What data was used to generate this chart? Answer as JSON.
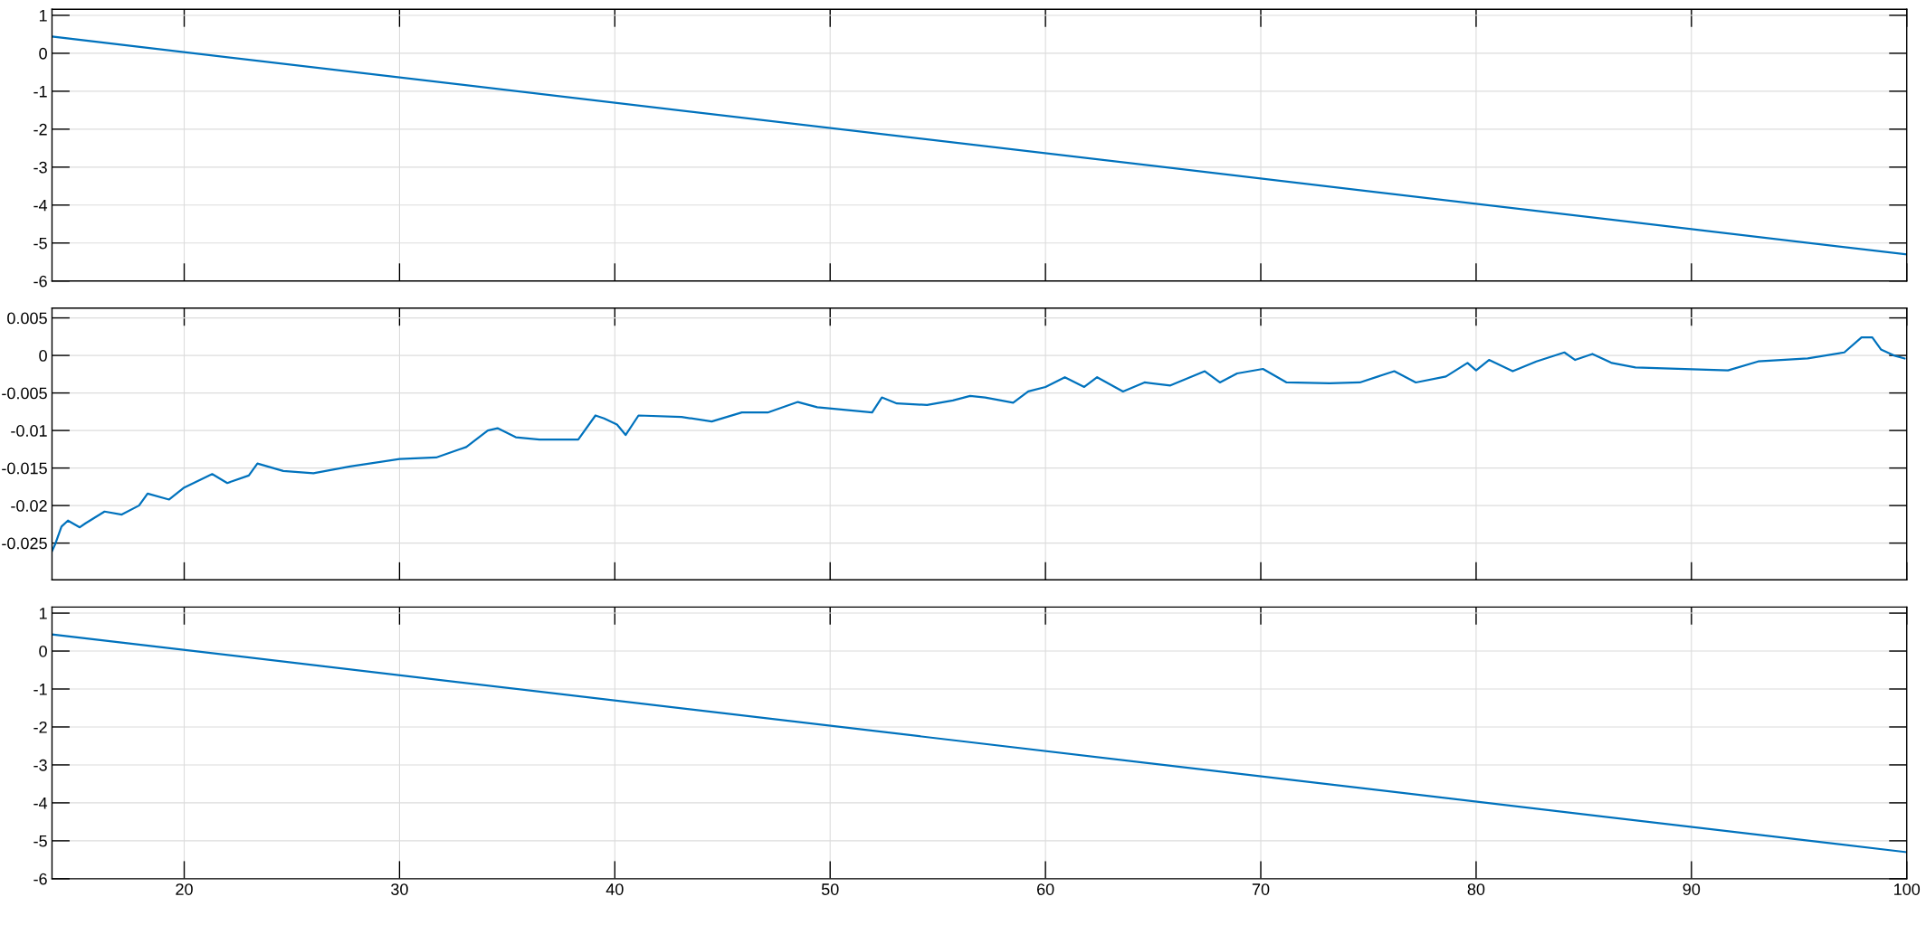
{
  "chart_data": [
    {
      "type": "line",
      "x": [
        13.86,
        100
      ],
      "values": [
        0.44,
        -5.3
      ],
      "color": "#0072bd",
      "xlim": [
        13.86,
        100
      ],
      "xticks": [
        20,
        30,
        40,
        50,
        60,
        70,
        80,
        90,
        100
      ],
      "ylim": [
        -6,
        1.16
      ],
      "yticks": [
        -6,
        -5,
        -4,
        -3,
        -2,
        -1,
        0,
        1
      ],
      "grid": true,
      "tick_labels": "y"
    },
    {
      "type": "line",
      "x": [
        13.87,
        14.0,
        14.3,
        14.6,
        15.15,
        15.4,
        16.3,
        17.1,
        17.9,
        18.3,
        19.3,
        20.0,
        21.3,
        22.0,
        23.0,
        23.4,
        24.6,
        26.0,
        27.7,
        30.0,
        31.7,
        33.1,
        34.1,
        34.55,
        35.4,
        36.5,
        38.3,
        39.1,
        39.5,
        40.1,
        40.5,
        41.1,
        43.1,
        44.5,
        45.9,
        47.1,
        48.5,
        49.4,
        51.95,
        52.4,
        53.1,
        54.5,
        55.7,
        56.5,
        57.2,
        58.5,
        59.2,
        60,
        60.9,
        61.8,
        62.4,
        63.6,
        64.6,
        65.8,
        67.4,
        68.1,
        68.9,
        70.1,
        71.2,
        73.2,
        74.6,
        76.2,
        77.2,
        78.6,
        79.6,
        80.0,
        80.6,
        81.7,
        82.8,
        84.1,
        84.6,
        85.4,
        86.3,
        87.4,
        89.7,
        91.7,
        93.1,
        95.4,
        97.1,
        97.9,
        98.4,
        98.8,
        99.4,
        99.9
      ],
      "values": [
        -0.026,
        -0.0252,
        -0.0228,
        -0.022,
        -0.0229,
        -0.0224,
        -0.0208,
        -0.0212,
        -0.02,
        -0.0184,
        -0.0192,
        -0.0176,
        -0.0158,
        -0.017,
        -0.016,
        -0.0144,
        -0.0154,
        -0.0157,
        -0.0148,
        -0.0138,
        -0.0136,
        -0.0122,
        -0.01,
        -0.0097,
        -0.0109,
        -0.0112,
        -0.0112,
        -0.008,
        -0.0084,
        -0.0092,
        -0.0106,
        -0.008,
        -0.0082,
        -0.0088,
        -0.0076,
        -0.0076,
        -0.0062,
        -0.0069,
        -0.0076,
        -0.0056,
        -0.0064,
        -0.0066,
        -0.006,
        -0.0054,
        -0.0056,
        -0.0063,
        -0.0048,
        -0.0042,
        -0.0029,
        -0.0042,
        -0.0029,
        -0.0048,
        -0.0036,
        -0.004,
        -0.0021,
        -0.0036,
        -0.0024,
        -0.0018,
        -0.0036,
        -0.0037,
        -0.0036,
        -0.0021,
        -0.0036,
        -0.0028,
        -0.001,
        -0.002,
        -0.0006,
        -0.0021,
        -0.0008,
        0.0004,
        -0.0006,
        0.0002,
        -0.001,
        -0.0016,
        -0.0018,
        -0.002,
        -0.0008,
        -0.0004,
        0.0004,
        0.0024,
        0.0024,
        0.0008,
        0.0,
        -0.0004
      ],
      "color": "#0072bd",
      "xlim": [
        13.86,
        100
      ],
      "xticks": [
        20,
        30,
        40,
        50,
        60,
        70,
        80,
        90,
        100
      ],
      "ylim": [
        -0.0299,
        0.0063
      ],
      "yticks": [
        -0.025,
        -0.02,
        -0.015,
        -0.01,
        -0.005,
        0,
        0.005
      ],
      "grid": true,
      "tick_labels": "y"
    },
    {
      "type": "line",
      "x": [
        13.86,
        100
      ],
      "values": [
        0.44,
        -5.3
      ],
      "color": "#0072bd",
      "xlim": [
        13.86,
        100
      ],
      "xticks": [
        20,
        30,
        40,
        50,
        60,
        70,
        80,
        90,
        100
      ],
      "ylim": [
        -6,
        1.16
      ],
      "yticks": [
        -6,
        -5,
        -4,
        -3,
        -2,
        -1,
        0,
        1
      ],
      "grid": true
    }
  ]
}
